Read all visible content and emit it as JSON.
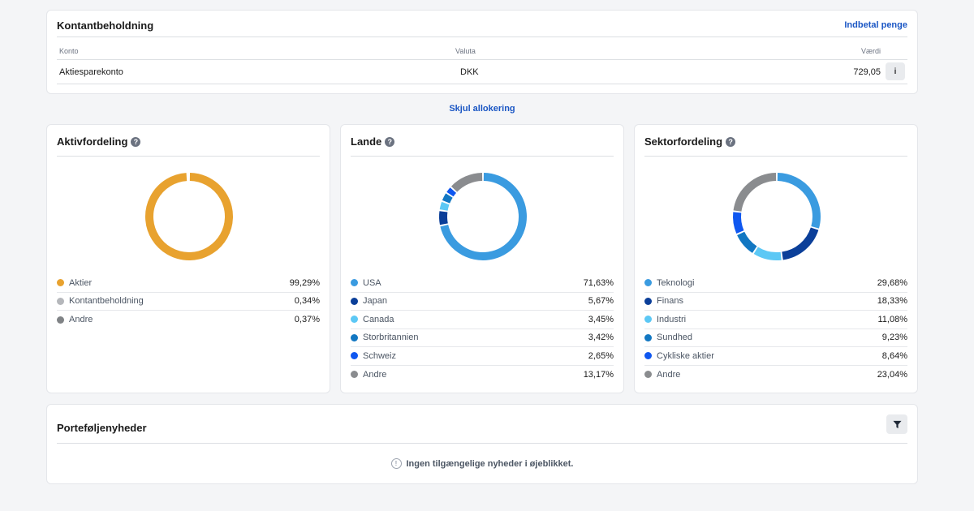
{
  "cash": {
    "title": "Kontantbeholdning",
    "deposit_label": "Indbetal penge",
    "columns": {
      "account": "Konto",
      "currency": "Valuta",
      "value": "Værdi"
    },
    "row": {
      "account": "Aktiesparekonto",
      "currency": "DKK",
      "value": "729,05",
      "info": "i"
    }
  },
  "hide_allocation_label": "Skjul allokering",
  "allocations": [
    {
      "title": "Aktivfordeling",
      "items": [
        {
          "label": "Aktier",
          "value": "99,29%",
          "pct": 99.29,
          "color": "#e8a22f"
        },
        {
          "label": "Kontantbeholdning",
          "value": "0,34%",
          "pct": 0.34,
          "color": "#b5b7bb"
        },
        {
          "label": "Andre",
          "value": "0,37%",
          "pct": 0.37,
          "color": "#808386"
        }
      ]
    },
    {
      "title": "Lande",
      "items": [
        {
          "label": "USA",
          "value": "71,63%",
          "pct": 71.63,
          "color": "#3a9be0"
        },
        {
          "label": "Japan",
          "value": "5,67%",
          "pct": 5.67,
          "color": "#0b3f99"
        },
        {
          "label": "Canada",
          "value": "3,45%",
          "pct": 3.45,
          "color": "#5cc8f5"
        },
        {
          "label": "Storbritannien",
          "value": "3,42%",
          "pct": 3.42,
          "color": "#1277c2"
        },
        {
          "label": "Schweiz",
          "value": "2,65%",
          "pct": 2.65,
          "color": "#0f57f0"
        },
        {
          "label": "Andre",
          "value": "13,17%",
          "pct": 13.17,
          "color": "#8a8c8f"
        }
      ]
    },
    {
      "title": "Sektorfordeling",
      "items": [
        {
          "label": "Teknologi",
          "value": "29,68%",
          "pct": 29.68,
          "color": "#3a9be0"
        },
        {
          "label": "Finans",
          "value": "18,33%",
          "pct": 18.33,
          "color": "#0b3f99"
        },
        {
          "label": "Industri",
          "value": "11,08%",
          "pct": 11.08,
          "color": "#5cc8f5"
        },
        {
          "label": "Sundhed",
          "value": "9,23%",
          "pct": 9.23,
          "color": "#1277c2"
        },
        {
          "label": "Cykliske aktier",
          "value": "8,64%",
          "pct": 8.64,
          "color": "#0f57f0"
        },
        {
          "label": "Andre",
          "value": "23,04%",
          "pct": 23.04,
          "color": "#8a8c8f"
        }
      ]
    }
  ],
  "news": {
    "title": "Porteføljenyheder",
    "empty_message": "Ingen tilgængelige nyheder i øjeblikket."
  }
}
